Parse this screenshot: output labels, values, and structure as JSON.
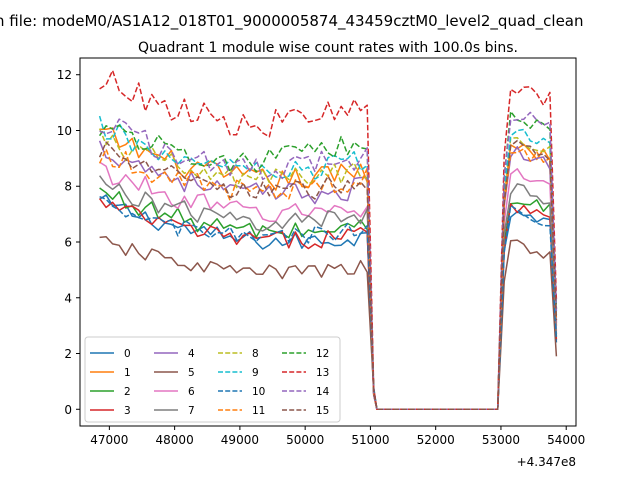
{
  "suptitle": "n file: modeM0/AS1A12_018T01_9000005874_43459cztM0_level2_quad_clean",
  "chart_data": {
    "type": "line",
    "title": "Quadrant 1 module wise count rates with 100.0s bins.",
    "xlabel": "",
    "ylabel": "",
    "x_offset_label": "+4.347e8",
    "xlim": [
      46550,
      54150
    ],
    "ylim": [
      -0.6,
      12.6
    ],
    "xticks": [
      47000,
      48000,
      49000,
      50000,
      51000,
      52000,
      53000,
      54000
    ],
    "yticks": [
      0,
      2,
      4,
      6,
      8,
      10,
      12
    ],
    "grid": false,
    "legend_location": "lower-left",
    "legend_columns": 4,
    "gap": {
      "start": 51100,
      "end": 52950,
      "value": 0
    },
    "series": [
      {
        "name": "0",
        "color": "#1f77b4",
        "dash": "solid",
        "start": 7.45,
        "end1": 6.2,
        "level2": 7.0,
        "end2": 2.4
      },
      {
        "name": "1",
        "color": "#ff7f0e",
        "dash": "solid",
        "start": 9.9,
        "end1": 8.6,
        "level2": 9.3,
        "end2": 3.0
      },
      {
        "name": "2",
        "color": "#2ca02c",
        "dash": "solid",
        "start": 7.8,
        "end1": 6.6,
        "level2": 7.4,
        "end2": 2.6
      },
      {
        "name": "3",
        "color": "#d62728",
        "dash": "solid",
        "start": 7.4,
        "end1": 6.3,
        "level2": 7.1,
        "end2": 2.5
      },
      {
        "name": "4",
        "color": "#9467bd",
        "dash": "solid",
        "start": 9.4,
        "end1": 8.0,
        "level2": 9.0,
        "end2": 3.1
      },
      {
        "name": "5",
        "color": "#8c564b",
        "dash": "solid",
        "start": 6.0,
        "end1": 5.1,
        "level2": 5.7,
        "end2": 1.9
      },
      {
        "name": "6",
        "color": "#e377c2",
        "dash": "solid",
        "start": 8.6,
        "end1": 7.3,
        "level2": 8.3,
        "end2": 2.8
      },
      {
        "name": "7",
        "color": "#7f7f7f",
        "dash": "solid",
        "start": 8.1,
        "end1": 7.0,
        "level2": 7.8,
        "end2": 2.7
      },
      {
        "name": "8",
        "color": "#bcbd22",
        "dash": "dashed",
        "start": 9.7,
        "end1": 8.7,
        "level2": 9.5,
        "end2": 3.3
      },
      {
        "name": "9",
        "color": "#17becf",
        "dash": "dashed",
        "start": 10.1,
        "end1": 8.9,
        "level2": 9.8,
        "end2": 3.4
      },
      {
        "name": "10",
        "color": "#1f77b4",
        "dash": "dashed",
        "start": 7.3,
        "end1": 6.5,
        "level2": 7.0,
        "end2": 2.5
      },
      {
        "name": "11",
        "color": "#ff7f0e",
        "dash": "dashed",
        "start": 9.2,
        "end1": 8.3,
        "level2": 9.1,
        "end2": 3.2
      },
      {
        "name": "12",
        "color": "#2ca02c",
        "dash": "dashed",
        "start": 10.2,
        "end1": 9.6,
        "level2": 10.3,
        "end2": 3.6
      },
      {
        "name": "13",
        "color": "#d62728",
        "dash": "dashed",
        "start": 11.9,
        "end1": 10.9,
        "level2": 11.3,
        "end2": 3.9
      },
      {
        "name": "14",
        "color": "#9467bd",
        "dash": "dashed",
        "start": 10.3,
        "end1": 9.1,
        "level2": 10.4,
        "end2": 3.5
      },
      {
        "name": "15",
        "color": "#8c564b",
        "dash": "dashed",
        "start": 9.3,
        "end1": 8.2,
        "level2": 9.2,
        "end2": 3.2
      }
    ]
  }
}
